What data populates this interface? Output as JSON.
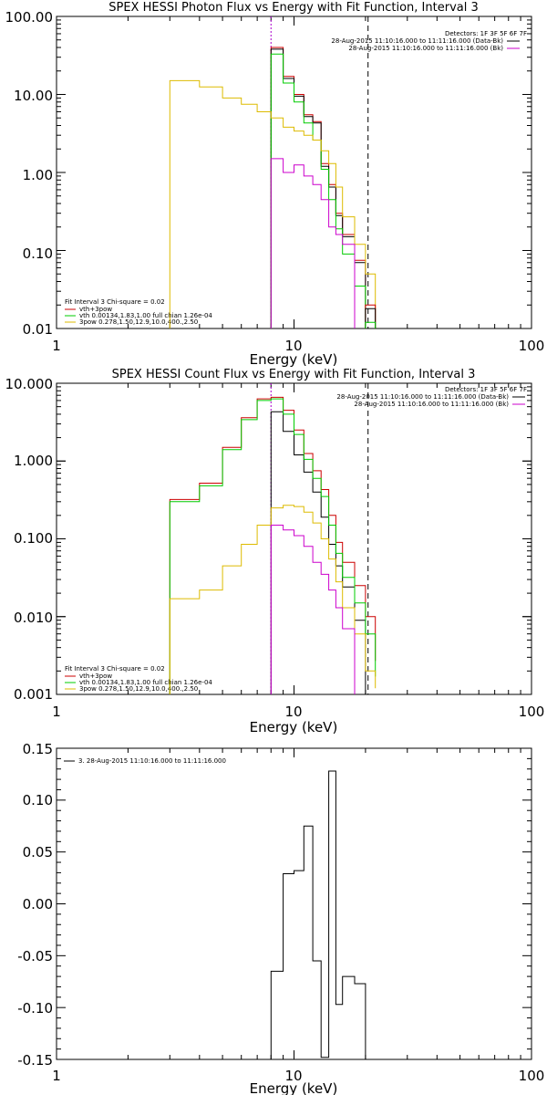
{
  "chart_data": [
    {
      "type": "line",
      "title": "SPEX HESSI Photon Flux vs Energy with Fit Function, Interval 3",
      "xlabel": "Energy (keV)",
      "ylabel": "",
      "x_scale": "log",
      "y_scale": "log",
      "xlim": [
        1,
        100
      ],
      "ylim": [
        0.01,
        100
      ],
      "x_tick_labels": [
        "1",
        "10",
        "100"
      ],
      "y_tick_labels": [
        "0.01",
        "0.10",
        "1.00",
        "10.00",
        "100.00"
      ],
      "annotations_topright": [
        "Detectors: 1F 3F 5F 6F 7F",
        "28-Aug-2015 11:10:16.000 to 11:11:16.000 (Data-Bk)",
        "28-Aug-2015 11:10:16.000 to 11:11:16.000 (Bk)"
      ],
      "legend_bottomleft": [
        "Fit Interval 3   Chi-square = 0.02",
        "vth+3pow",
        "vth 0.00134,1.83,1.00  full chian 1.26e-04",
        "3pow 0.278,1.50,12.9,10.0,400.,2.50"
      ],
      "vlines": [
        {
          "x": 8.0,
          "style": "dotted",
          "color": "#aa00cc"
        },
        {
          "x": 20.5,
          "style": "dashed",
          "color": "#000000"
        }
      ],
      "series": [
        {
          "color": "#cc0000",
          "edges": [
            8,
            9,
            10,
            11,
            12,
            13,
            14,
            15,
            16,
            18,
            20
          ],
          "values": [
            40,
            17,
            10,
            5.5,
            4.5,
            1.3,
            0.7,
            0.3,
            0.16,
            0.075
          ]
        },
        {
          "color": "#000000",
          "edges": [
            8,
            9,
            10,
            11,
            12,
            13,
            14,
            15,
            16,
            18,
            20
          ],
          "values": [
            38,
            16,
            9.5,
            5.2,
            4.3,
            1.2,
            0.65,
            0.28,
            0.15,
            0.07
          ]
        },
        {
          "color": "#00cc00",
          "edges": [
            8,
            9,
            10,
            11,
            12,
            13,
            14,
            15,
            16,
            18,
            20
          ],
          "values": [
            33,
            14,
            8,
            4.3,
            2.6,
            1.1,
            0.45,
            0.19,
            0.09,
            0.035
          ]
        },
        {
          "color": "#ddbb00",
          "edges": [
            3,
            4,
            5,
            6,
            7,
            8,
            9,
            10,
            11,
            12,
            13,
            14,
            15,
            16,
            18,
            20,
            22
          ],
          "values": [
            15,
            12.5,
            9,
            7.5,
            6,
            5,
            3.8,
            3.4,
            3.0,
            2.6,
            1.9,
            1.3,
            0.65,
            0.27,
            0.12,
            0.05,
            0.012
          ]
        },
        {
          "color": "#cc00cc",
          "edges": [
            8,
            9,
            10,
            11,
            12,
            13,
            14,
            15,
            16,
            18
          ],
          "values": [
            1.5,
            1.0,
            1.25,
            0.9,
            0.7,
            0.45,
            0.2,
            0.16,
            0.12
          ]
        },
        {
          "color": "#cc0000",
          "edges": [
            20,
            22
          ],
          "values": [
            0.02
          ]
        },
        {
          "color": "#000000",
          "edges": [
            20,
            22
          ],
          "values": [
            0.018
          ]
        },
        {
          "color": "#00cc00",
          "edges": [
            20,
            22
          ],
          "values": [
            0.012
          ]
        }
      ]
    },
    {
      "type": "line",
      "title": "SPEX HESSI Count Flux vs Energy with Fit Function, Interval 3",
      "xlabel": "Energy (keV)",
      "ylabel": "",
      "x_scale": "log",
      "y_scale": "log",
      "xlim": [
        1,
        100
      ],
      "ylim": [
        0.001,
        10
      ],
      "x_tick_labels": [
        "1",
        "10",
        "100"
      ],
      "y_tick_labels": [
        "0.001",
        "0.010",
        "0.100",
        "1.000",
        "10.000"
      ],
      "annotations_topright": [
        "Detectors: 1F 3F 5F 6F 7F",
        "28-Aug-2015 11:10:16.000 to 11:11:16.000 (Data-Bk)",
        "28-Aug-2015 11:10:16.000 to 11:11:16.000 (Bk)"
      ],
      "legend_bottomleft": [
        "Fit Interval 3   Chi-square = 0.02",
        "vth+3pow",
        "vth 0.00134,1.83,1.00  full chian 1.26e-04",
        "3pow 0.278,1.50,12.9,10.0,400.,2.50"
      ],
      "vlines": [
        {
          "x": 8.0,
          "style": "dotted",
          "color": "#aa00cc"
        },
        {
          "x": 20.5,
          "style": "dashed",
          "color": "#000000"
        }
      ],
      "series": [
        {
          "color": "#cc0000",
          "edges": [
            3,
            4,
            5,
            6,
            7,
            8,
            9,
            10,
            11,
            12,
            13,
            14,
            15,
            16,
            18,
            20,
            22
          ],
          "values": [
            0.32,
            0.52,
            1.5,
            3.6,
            6.3,
            6.6,
            4.5,
            2.5,
            1.25,
            0.75,
            0.43,
            0.2,
            0.09,
            0.05,
            0.025,
            0.01,
            0.0027
          ]
        },
        {
          "color": "#000000",
          "edges": [
            8,
            9,
            10,
            11,
            12,
            13,
            14,
            15,
            16,
            18,
            20
          ],
          "values": [
            4.3,
            2.4,
            1.2,
            0.72,
            0.4,
            0.19,
            0.085,
            0.045,
            0.024,
            0.009
          ]
        },
        {
          "color": "#00cc00",
          "edges": [
            3,
            4,
            5,
            6,
            7,
            8,
            9,
            10,
            11,
            12,
            13,
            14,
            15,
            16,
            18,
            20,
            22
          ],
          "values": [
            0.3,
            0.48,
            1.4,
            3.4,
            6.0,
            6.3,
            4.0,
            2.2,
            1.05,
            0.6,
            0.35,
            0.15,
            0.065,
            0.032,
            0.015,
            0.006,
            0.0017
          ]
        },
        {
          "color": "#ddbb00",
          "edges": [
            3,
            4,
            5,
            6,
            7,
            8,
            9,
            10,
            11,
            12,
            13,
            14,
            15,
            16,
            18,
            20,
            22
          ],
          "values": [
            0.017,
            0.022,
            0.045,
            0.085,
            0.15,
            0.25,
            0.27,
            0.26,
            0.22,
            0.16,
            0.1,
            0.055,
            0.028,
            0.013,
            0.006,
            0.002,
            0.0012
          ]
        },
        {
          "color": "#cc00cc",
          "edges": [
            8,
            9,
            10,
            11,
            12,
            13,
            14,
            15,
            16,
            18
          ],
          "values": [
            0.15,
            0.13,
            0.11,
            0.08,
            0.05,
            0.035,
            0.022,
            0.013,
            0.007
          ]
        }
      ]
    },
    {
      "type": "line",
      "title": "",
      "xlabel": "Energy (keV)",
      "ylabel": "",
      "x_scale": "log",
      "y_scale": "linear",
      "xlim": [
        1,
        100
      ],
      "ylim": [
        -0.15,
        0.15
      ],
      "x_tick_labels": [
        "1",
        "10",
        "100"
      ],
      "y_tick_labels": [
        "-0.15",
        "-0.10",
        "-0.05",
        "0.00",
        "0.05",
        "0.10",
        "0.15"
      ],
      "legend_topleft": [
        "3. 28-Aug-2015 11:10:16.000 to 11:11:16.000"
      ],
      "series": [
        {
          "color": "#000000",
          "edges": [
            8,
            9,
            10,
            11,
            12,
            13,
            14,
            15,
            16,
            18,
            20
          ],
          "values": [
            -0.065,
            0.029,
            0.032,
            0.075,
            -0.055,
            -0.148,
            0.128,
            -0.097,
            -0.07,
            -0.077
          ]
        }
      ]
    }
  ]
}
